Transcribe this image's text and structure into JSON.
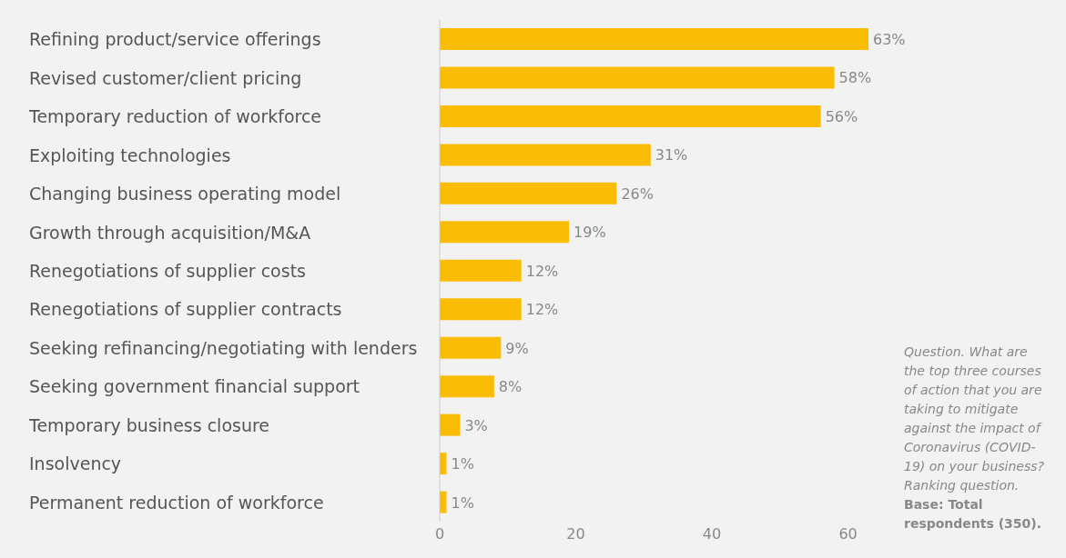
{
  "chart_data": {
    "type": "bar",
    "orientation": "horizontal",
    "categories": [
      "Refining product/service offerings",
      "Revised customer/client pricing",
      "Temporary reduction of workforce",
      "Exploiting technologies",
      "Changing business operating model",
      "Growth through acquisition/M&A",
      "Renegotiations of supplier costs",
      "Renegotiations of supplier contracts",
      "Seeking refinancing/negotiating with lenders",
      "Seeking government financial support",
      "Temporary business closure",
      "Insolvency",
      "Permanent reduction of workforce"
    ],
    "values": [
      63,
      58,
      56,
      31,
      26,
      19,
      12,
      12,
      9,
      8,
      3,
      1,
      1
    ],
    "value_labels": [
      "63%",
      "58%",
      "56%",
      "31%",
      "26%",
      "19%",
      "12%",
      "12%",
      "9%",
      "8%",
      "3%",
      "1%",
      "1%"
    ],
    "color": "#fbbc05",
    "xlim": [
      0,
      63
    ],
    "xticks": [
      0,
      20,
      40,
      60
    ],
    "grid": false,
    "legend": false,
    "annotations": [
      "Question. What are the top three courses of action that you are taking to mitigate against the impact of Coronavirus (COVID-19) on your business? Ranking question.",
      "Base: Total respondents (350)."
    ]
  }
}
